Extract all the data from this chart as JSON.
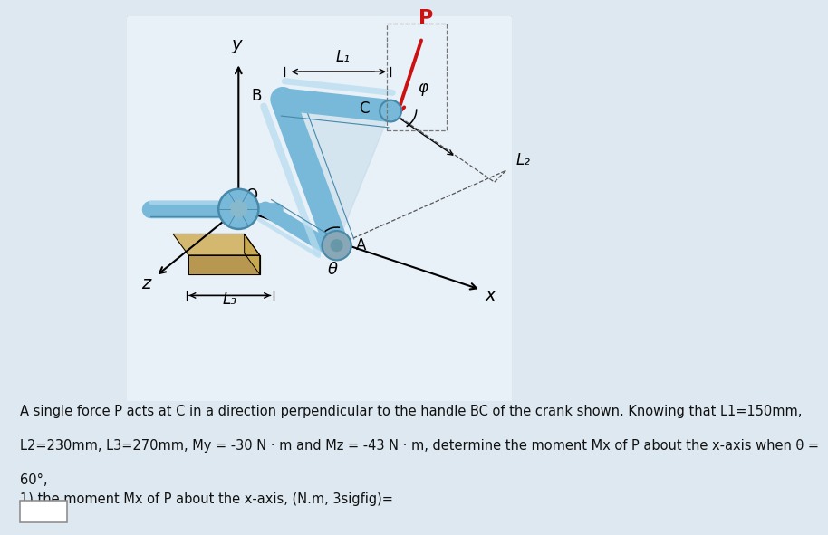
{
  "background_color": "#dde8f0",
  "diagram_bg": "#e8f0f8",
  "text_color": "#111111",
  "crank_color": "#78b8d8",
  "crank_dark": "#4888a8",
  "crank_highlight": "#b8ddf0",
  "base_top_color": "#d4b870",
  "base_side_color": "#b89850",
  "arrow_P_color": "#cc1111",
  "dashed_color": "#555555",
  "axis_color": "#000000",
  "plate_color": "#a8cce0",
  "problem_line1": "A single force P acts at C in a direction perpendicular to the handle BC of the crank shown. Knowing that L1=150mm,",
  "problem_line2": "L2=230mm, L3=270mm, My = -30 N · m and Mz = -43 N · m, determine the moment Mx of P about the x-axis when θ =",
  "problem_line3": "60°,",
  "question_line": "1) the moment Mx of P about the x-axis, (N.m, 3sigfig)=",
  "font_size": 10.5,
  "labels": {
    "y": "y",
    "x": "x",
    "z": "z",
    "O": "O",
    "A": "A",
    "B": "B",
    "C": "C",
    "P": "P",
    "L1": "L₁",
    "L2": "L₂",
    "L3": "L₃",
    "theta": "θ",
    "phi": "φ"
  }
}
